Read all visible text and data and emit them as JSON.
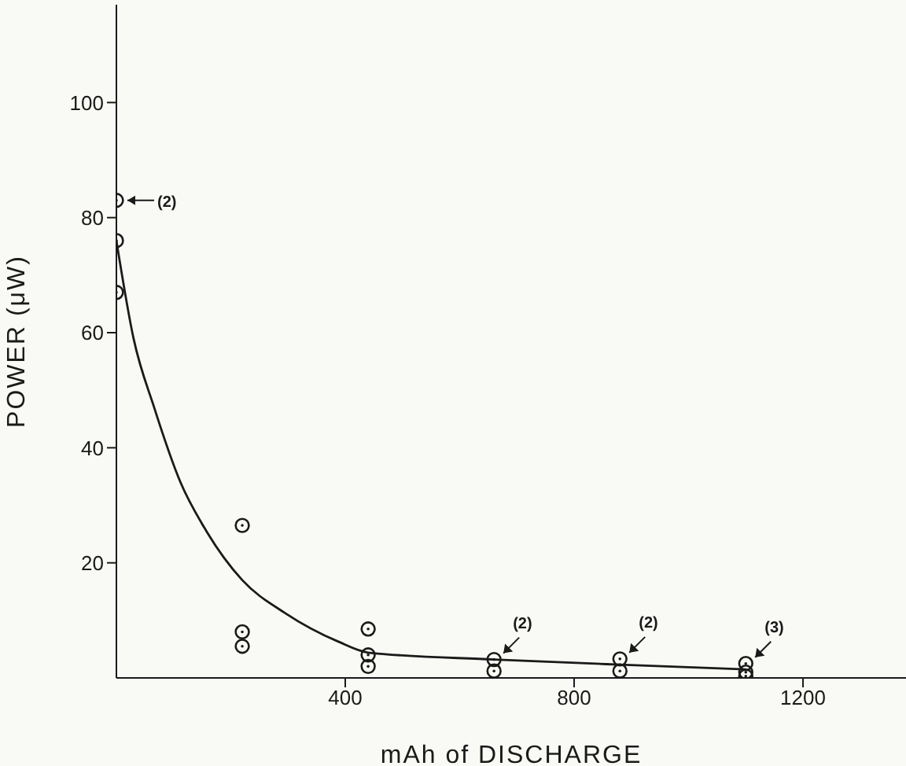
{
  "chart_data": {
    "type": "scatter",
    "xlabel": "mAh of DISCHARGE",
    "ylabel": "POWER (μW)",
    "xlim": [
      0,
      1380
    ],
    "ylim": [
      0,
      117
    ],
    "xticks": [
      400,
      800,
      1200
    ],
    "yticks": [
      20,
      40,
      60,
      80,
      100
    ],
    "grid": false,
    "legend": false,
    "marker": "circle",
    "series": [
      {
        "color": "#1a1a1a",
        "x": [
          0,
          0,
          0,
          220,
          220,
          220,
          440,
          440,
          440,
          660,
          660,
          880,
          880,
          1100,
          1100,
          1100
        ],
        "values": [
          83,
          76,
          67,
          26.5,
          8,
          5.5,
          8.5,
          4,
          2,
          3.2,
          1.2,
          3.3,
          1.2,
          2.5,
          1,
          0.3
        ]
      },
      {
        "type": "line",
        "color": "#1a1a1a",
        "marker": "none",
        "line_style": "solid",
        "x": [
          0,
          30,
          66,
          112,
          158,
          220,
          296,
          388,
          440,
          660,
          880,
          1100
        ],
        "values": [
          76,
          59,
          47,
          34,
          25.4,
          17,
          11.2,
          6.3,
          4.4,
          3.2,
          2.3,
          1.5
        ]
      }
    ],
    "annotations": [
      {
        "text": "(2)",
        "x": 0,
        "y": 83
      },
      {
        "text": "(2)",
        "x": 660,
        "y": 3.2
      },
      {
        "text": "(2)",
        "x": 880,
        "y": 3.3
      },
      {
        "text": "(3)",
        "x": 1100,
        "y": 2.5
      }
    ]
  }
}
